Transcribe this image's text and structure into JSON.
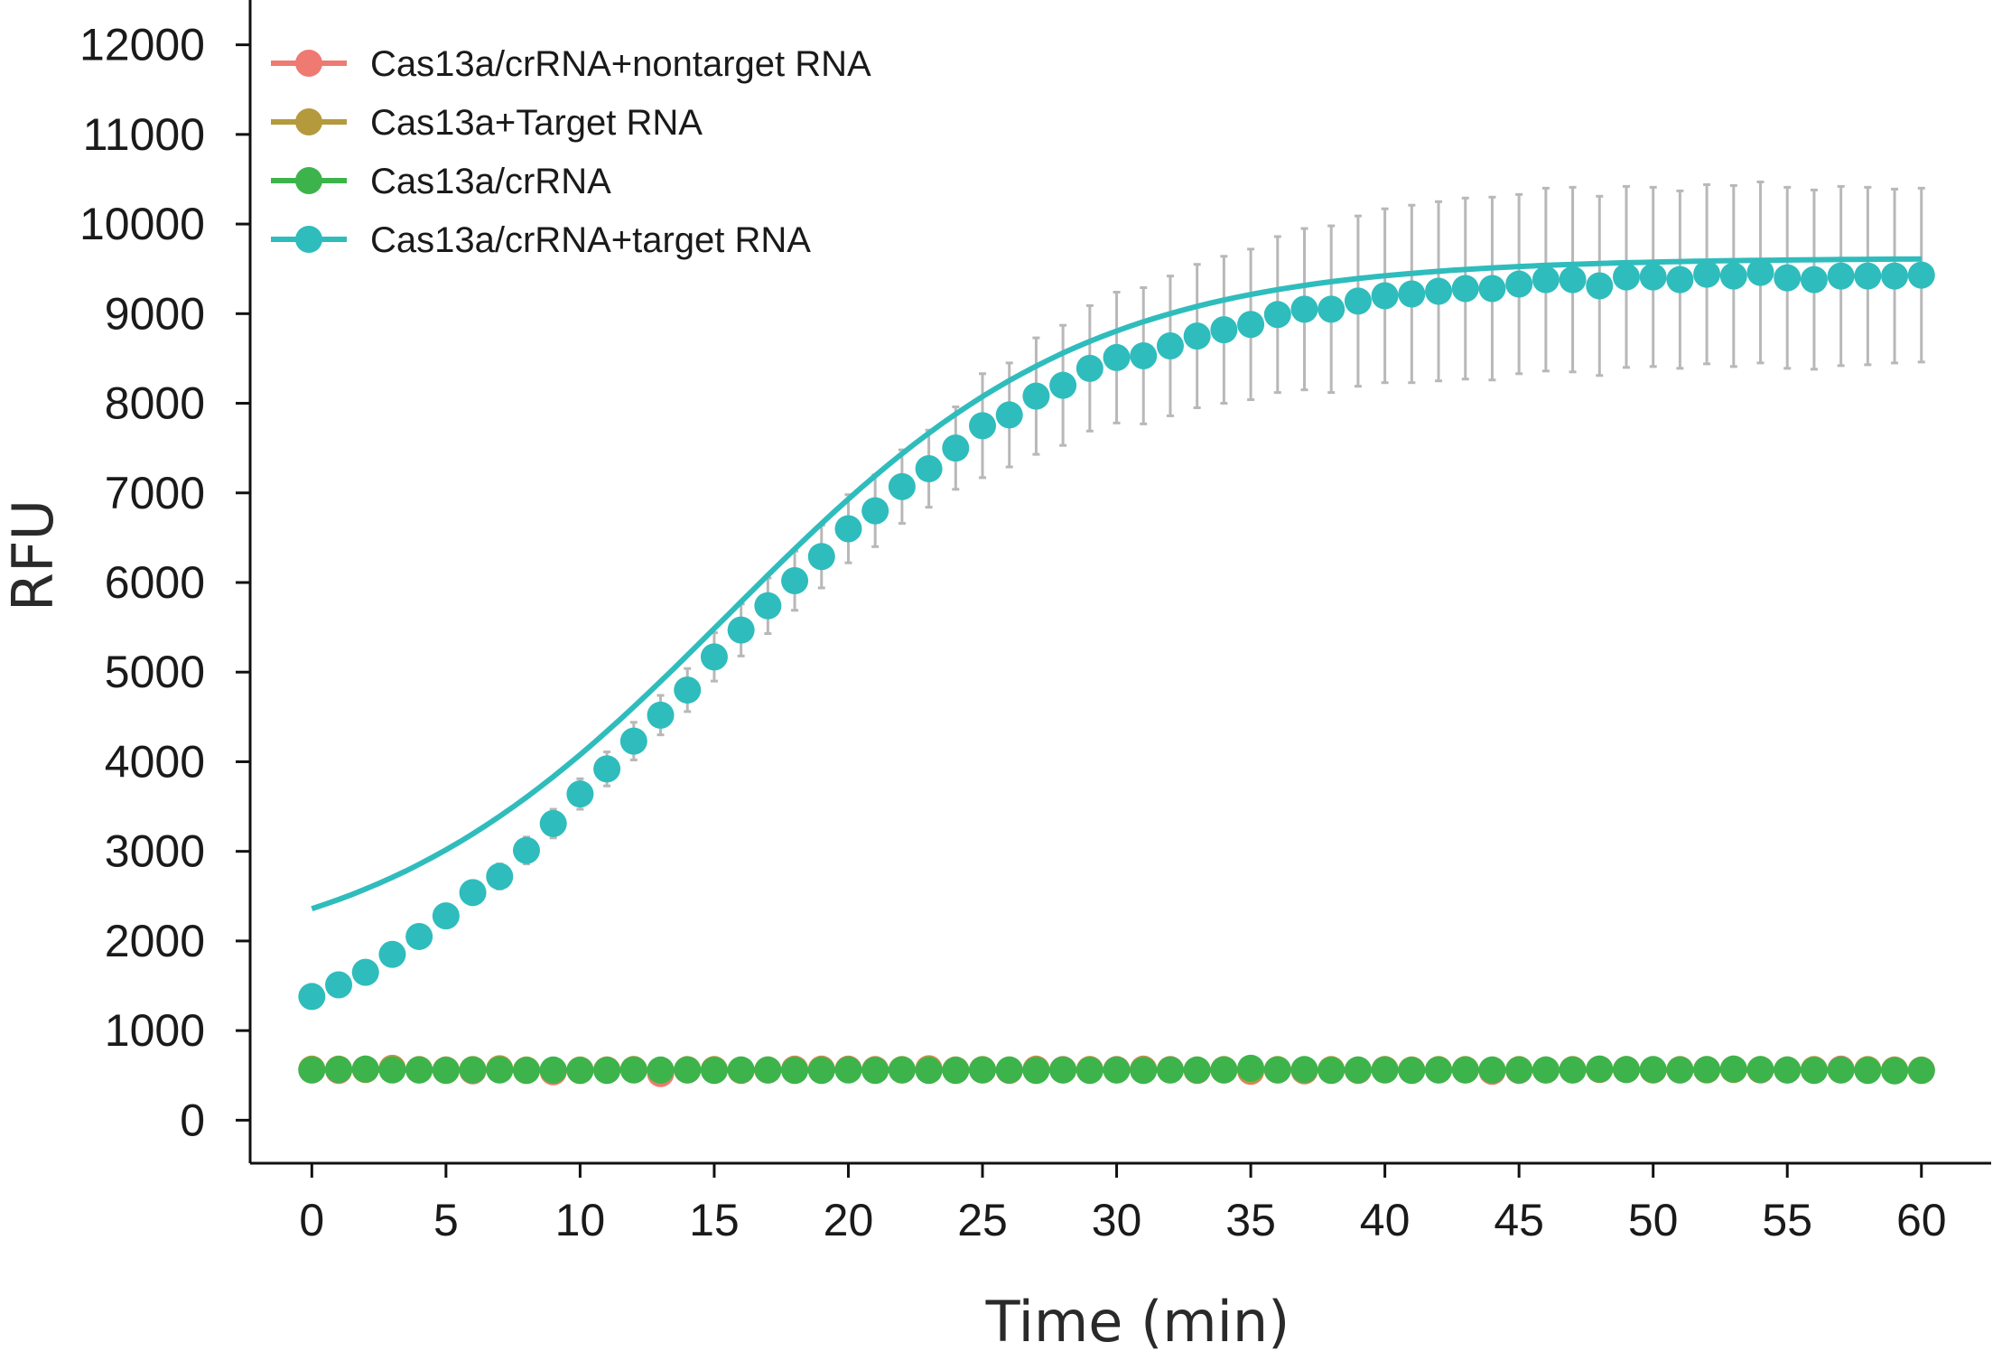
{
  "chart_data": {
    "type": "line",
    "title": "",
    "xlabel": "Time (min)",
    "ylabel": "RFU",
    "xlim": [
      -2.3,
      62.6
    ],
    "ylim": [
      -480,
      12500
    ],
    "xticks": [
      0,
      5,
      10,
      15,
      20,
      25,
      30,
      35,
      40,
      45,
      50,
      55,
      60
    ],
    "yticks": [
      0,
      1000,
      2000,
      3000,
      4000,
      5000,
      6000,
      7000,
      8000,
      9000,
      10000,
      11000,
      12000
    ],
    "grid": false,
    "legend_position": "top-left",
    "x": [
      0,
      1,
      2,
      3,
      4,
      5,
      6,
      7,
      8,
      9,
      10,
      11,
      12,
      13,
      14,
      15,
      16,
      17,
      18,
      19,
      20,
      21,
      22,
      23,
      24,
      25,
      26,
      27,
      28,
      29,
      30,
      31,
      32,
      33,
      34,
      35,
      36,
      37,
      38,
      39,
      40,
      41,
      42,
      43,
      44,
      45,
      46,
      47,
      48,
      49,
      50,
      51,
      52,
      53,
      54,
      55,
      56,
      57,
      58,
      59,
      60
    ],
    "series": [
      {
        "name": "Cas13a/crRNA+nontarget RNA",
        "color": "#ee7a72",
        "values": [
          560,
          555,
          570,
          580,
          560,
          560,
          550,
          570,
          555,
          540,
          555,
          560,
          565,
          520,
          560,
          560,
          555,
          560,
          570,
          570,
          570,
          565,
          560,
          575,
          560,
          560,
          555,
          570,
          565,
          565,
          565,
          570,
          565,
          555,
          560,
          545,
          560,
          550,
          560,
          555,
          565,
          560,
          560,
          560,
          545,
          555,
          560,
          560,
          570,
          565,
          560,
          560,
          565,
          570,
          560,
          560,
          560,
          570,
          560,
          560,
          555
        ]
      },
      {
        "name": "Cas13a+Target RNA",
        "color": "#b49a3c",
        "values": [
          570,
          570,
          565,
          575,
          565,
          560,
          565,
          575,
          560,
          555,
          560,
          560,
          565,
          555,
          565,
          565,
          560,
          560,
          565,
          565,
          565,
          560,
          565,
          570,
          560,
          565,
          560,
          565,
          560,
          565,
          560,
          565,
          560,
          560,
          565,
          560,
          565,
          560,
          565,
          560,
          565,
          560,
          565,
          565,
          560,
          565,
          560,
          565,
          565,
          565,
          560,
          565,
          560,
          565,
          565,
          560,
          565,
          560,
          565,
          560,
          560
        ]
      },
      {
        "name": "Cas13a/crRNA",
        "color": "#3cb44b",
        "values": [
          560,
          565,
          570,
          560,
          560,
          555,
          560,
          560,
          555,
          560,
          555,
          555,
          560,
          560,
          560,
          555,
          560,
          560,
          555,
          555,
          560,
          555,
          560,
          555,
          555,
          560,
          560,
          555,
          560,
          555,
          560,
          555,
          560,
          560,
          560,
          580,
          560,
          565,
          555,
          560,
          560,
          555,
          560,
          560,
          560,
          560,
          560,
          560,
          570,
          565,
          565,
          560,
          565,
          570,
          565,
          560,
          555,
          560,
          555,
          550,
          555
        ]
      },
      {
        "name": "Cas13a/crRNA+target RNA",
        "color": "#2fbcbc",
        "values": [
          1380,
          1510,
          1650,
          1850,
          2050,
          2280,
          2540,
          2720,
          3010,
          3310,
          3640,
          3920,
          4230,
          4520,
          4800,
          5170,
          5470,
          5740,
          6020,
          6290,
          6600,
          6800,
          7070,
          7270,
          7500,
          7750,
          7870,
          8080,
          8200,
          8390,
          8510,
          8530,
          8640,
          8750,
          8820,
          8880,
          8990,
          9050,
          9050,
          9140,
          9200,
          9220,
          9250,
          9280,
          9280,
          9330,
          9380,
          9380,
          9310,
          9410,
          9410,
          9380,
          9440,
          9420,
          9460,
          9400,
          9380,
          9420,
          9420,
          9420,
          9430
        ],
        "error": [
          80,
          90,
          100,
          110,
          110,
          120,
          130,
          140,
          150,
          160,
          170,
          190,
          210,
          220,
          240,
          270,
          290,
          310,
          330,
          350,
          380,
          400,
          410,
          430,
          460,
          580,
          580,
          650,
          670,
          700,
          730,
          760,
          780,
          800,
          820,
          840,
          870,
          900,
          930,
          950,
          970,
          990,
          1000,
          1010,
          1020,
          1000,
          1020,
          1030,
          1000,
          1010,
          1000,
          990,
          1000,
          1010,
          1010,
          1010,
          1000,
          1000,
          990,
          970,
          970
        ]
      }
    ],
    "fit": {
      "series": "Cas13a/crRNA+target RNA",
      "color": "#2fbcbc",
      "description": "sigmoidal fit curve"
    }
  }
}
